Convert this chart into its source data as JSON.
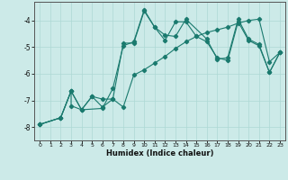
{
  "xlabel": "Humidex (Indice chaleur)",
  "bg_color": "#cceae8",
  "line_color": "#1a7a6e",
  "grid_color": "#add8d4",
  "line1_x": [
    0,
    2,
    3,
    4,
    6,
    7,
    8,
    9,
    10,
    11,
    12,
    13,
    14,
    16,
    17,
    18,
    19,
    20,
    21,
    22,
    23
  ],
  "line1_y": [
    -7.9,
    -7.65,
    -6.65,
    -7.35,
    -7.3,
    -6.55,
    -4.95,
    -4.8,
    -3.6,
    -4.25,
    -4.55,
    -4.6,
    -3.95,
    -4.7,
    -5.45,
    -5.4,
    -3.95,
    -4.7,
    -4.9,
    -5.95,
    -5.2
  ],
  "line2_x": [
    0,
    2,
    3,
    3,
    4,
    5,
    6,
    7,
    8,
    9,
    10,
    11,
    12,
    13,
    14,
    15,
    16,
    17,
    18,
    19,
    20,
    21,
    22,
    23
  ],
  "line2_y": [
    -7.9,
    -7.65,
    -6.65,
    -7.2,
    -7.35,
    -6.85,
    -6.95,
    -6.95,
    -4.85,
    -4.85,
    -3.65,
    -4.25,
    -4.75,
    -4.05,
    -4.05,
    -4.6,
    -4.8,
    -5.4,
    -5.5,
    -4.05,
    -4.75,
    -4.95,
    -5.95,
    -5.2
  ],
  "line3_x": [
    0,
    2,
    3,
    4,
    5,
    6,
    7,
    8,
    9,
    10,
    11,
    12,
    13,
    14,
    15,
    16,
    17,
    18,
    19,
    20,
    21,
    22,
    23
  ],
  "line3_y": [
    -7.9,
    -7.65,
    -6.65,
    -7.35,
    -6.85,
    -7.25,
    -6.95,
    -7.25,
    -6.05,
    -5.85,
    -5.6,
    -5.35,
    -5.05,
    -4.8,
    -4.6,
    -4.45,
    -4.35,
    -4.25,
    -4.1,
    -4.0,
    -3.95,
    -5.55,
    -5.2
  ],
  "xticks": [
    0,
    1,
    2,
    3,
    4,
    5,
    6,
    7,
    8,
    9,
    10,
    11,
    12,
    13,
    14,
    15,
    16,
    17,
    18,
    19,
    20,
    21,
    22,
    23
  ],
  "yticks": [
    -8,
    -7,
    -6,
    -5,
    -4
  ],
  "xlim": [
    -0.5,
    23.5
  ],
  "ylim": [
    -8.5,
    -3.3
  ]
}
